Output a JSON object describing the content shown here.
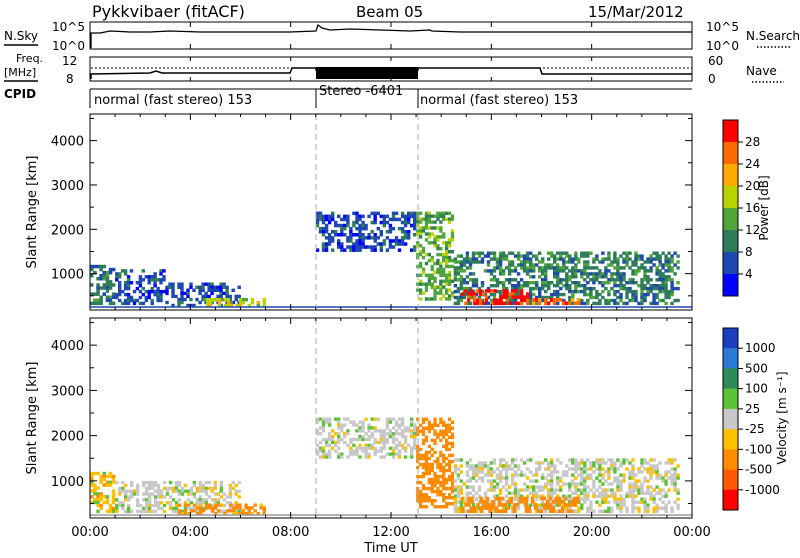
{
  "header": {
    "station": "Pykkvibaer (fitACF)",
    "beam": "Beam 05",
    "date": "15/Mar/2012"
  },
  "panels": {
    "nsky": {
      "label": "N.Sky",
      "ticks": [
        "10^5",
        "10^0"
      ],
      "right_ticks": [
        "10^5",
        "10^0"
      ],
      "right_label": "N.Search"
    },
    "freq": {
      "label_1": "Freq.",
      "label_2": "[MHz]",
      "ticks": [
        "12",
        "8"
      ],
      "right_ticks": [
        "60",
        "0"
      ],
      "right_label": "Nave"
    },
    "cpid": {
      "label": "CPID",
      "modes": [
        {
          "text": "normal (fast stereo) 153",
          "start": 0.0,
          "end": 9.0
        },
        {
          "text": "Stereo -6401",
          "start": 9.0,
          "end": 13.0
        },
        {
          "text": "normal (fast stereo) 153",
          "start": 13.0,
          "end": 24.0
        }
      ]
    }
  },
  "x_axis": {
    "label": "Time UT",
    "ticks": [
      "00:00",
      "04:00",
      "08:00",
      "12:00",
      "16:00",
      "20:00",
      "00:00"
    ],
    "range": [
      0,
      24
    ]
  },
  "power_colorbar": {
    "title": "Power [dB]",
    "ticks": [
      "28",
      "24",
      "20",
      "16",
      "12",
      "8",
      "4"
    ],
    "colors": [
      "#ff0000",
      "#ff6a00",
      "#ffaa00",
      "#b8d400",
      "#4fa53c",
      "#2e7d5a",
      "#1f48b0",
      "#0000ff"
    ]
  },
  "velocity_colorbar": {
    "title": "Velocity [m s⁻¹]",
    "ticks": [
      "1000",
      "500",
      "100",
      "25",
      "-25",
      "-100",
      "-500",
      "-1000"
    ],
    "colors": [
      "#1d3fbf",
      "#2a7ad6",
      "#2e8b57",
      "#5bc335",
      "#c8c8c8",
      "#ffc000",
      "#ff8c00",
      "#ff5a00",
      "#ff0000"
    ]
  },
  "chart_data": [
    {
      "type": "heatmap",
      "title": "Power",
      "xlabel": "Time UT",
      "ylabel": "Slant Range [km]",
      "xlim": [
        0,
        24
      ],
      "ylim": [
        180,
        4600
      ],
      "y_ticks": [
        1000,
        2000,
        3000,
        4000
      ],
      "series": [
        {
          "time": [
            0.0,
            1.0
          ],
          "range": [
            300,
            1200
          ],
          "power_db": 10
        },
        {
          "time": [
            1.0,
            3.0
          ],
          "range": [
            300,
            1100
          ],
          "power_db": 6
        },
        {
          "time": [
            3.0,
            6.0
          ],
          "range": [
            250,
            800
          ],
          "power_db": 6
        },
        {
          "time": [
            4.5,
            7.0
          ],
          "range": [
            250,
            450
          ],
          "power_db": 18
        },
        {
          "time": [
            9.0,
            13.0
          ],
          "range": [
            1500,
            2400
          ],
          "power_db": 4
        },
        {
          "time": [
            13.0,
            14.5
          ],
          "range": [
            400,
            2400
          ],
          "power_db": 12
        },
        {
          "time": [
            14.5,
            23.5
          ],
          "range": [
            300,
            1500
          ],
          "power_db": 10
        },
        {
          "time": [
            14.8,
            17.5
          ],
          "range": [
            300,
            650
          ],
          "power_db": 27
        },
        {
          "time": [
            17.5,
            20.0
          ],
          "range": [
            300,
            450
          ],
          "power_db": 24
        }
      ]
    },
    {
      "type": "heatmap",
      "title": "Velocity",
      "xlabel": "Time UT",
      "ylabel": "Slant Range [km]",
      "xlim": [
        0,
        24
      ],
      "ylim": [
        180,
        4600
      ],
      "y_ticks": [
        1000,
        2000,
        3000,
        4000
      ],
      "series": [
        {
          "time": [
            0.0,
            1.0
          ],
          "range": [
            300,
            1200
          ],
          "velocity": -50
        },
        {
          "time": [
            1.0,
            6.0
          ],
          "range": [
            300,
            1000
          ],
          "velocity": 0
        },
        {
          "time": [
            3.5,
            7.0
          ],
          "range": [
            250,
            500
          ],
          "velocity": -150
        },
        {
          "time": [
            9.0,
            13.0
          ],
          "range": [
            1500,
            2400
          ],
          "velocity": 0
        },
        {
          "time": [
            13.0,
            14.5
          ],
          "range": [
            400,
            2400
          ],
          "velocity": -300
        },
        {
          "time": [
            14.5,
            23.5
          ],
          "range": [
            300,
            1500
          ],
          "velocity": 0
        },
        {
          "time": [
            14.8,
            19.5
          ],
          "range": [
            300,
            650
          ],
          "velocity": -200
        }
      ]
    }
  ]
}
